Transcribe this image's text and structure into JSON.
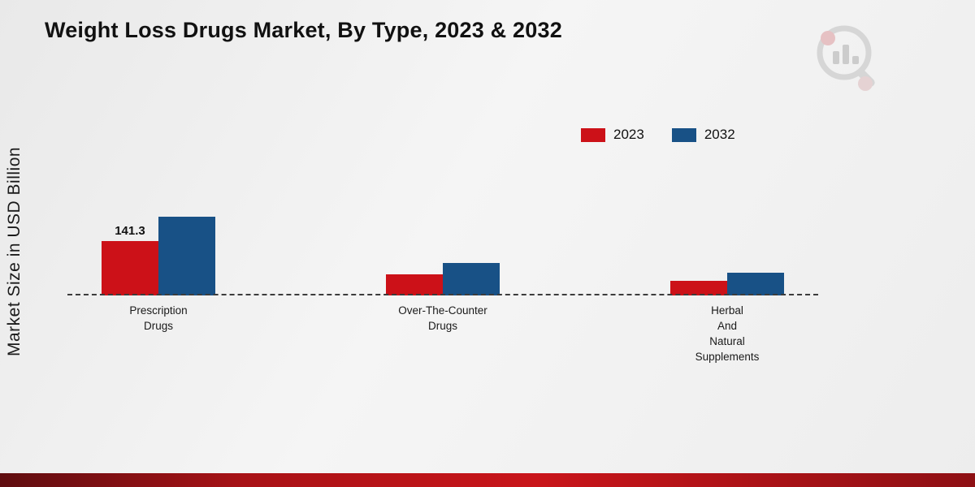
{
  "title": "Weight Loss Drugs Market, By Type, 2023 & 2032",
  "brand": {
    "logo": "market-research-logo"
  },
  "chart_data": {
    "type": "bar",
    "title": "Weight Loss Drugs Market, By Type, 2023 & 2032",
    "ylabel": "Market Size in USD Billion",
    "xlabel": "",
    "baseline_style": "dashed",
    "legend_position": "top-right",
    "categories": [
      "Prescription Drugs",
      "Over-The-Counter Drugs",
      "Herbal And Natural Supplements"
    ],
    "category_label_lines": [
      [
        "Prescription",
        "Drugs"
      ],
      [
        "Over-The-Counter",
        "Drugs"
      ],
      [
        "Herbal",
        "And",
        "Natural",
        "Supplements"
      ]
    ],
    "series": [
      {
        "name": "2023",
        "color": "#cc1118",
        "values": [
          141.3,
          55,
          38
        ]
      },
      {
        "name": "2032",
        "color": "#185186",
        "values": [
          205,
          85,
          58
        ]
      }
    ],
    "data_labels": [
      {
        "series": 0,
        "category": 0,
        "text": "141.3"
      }
    ]
  }
}
